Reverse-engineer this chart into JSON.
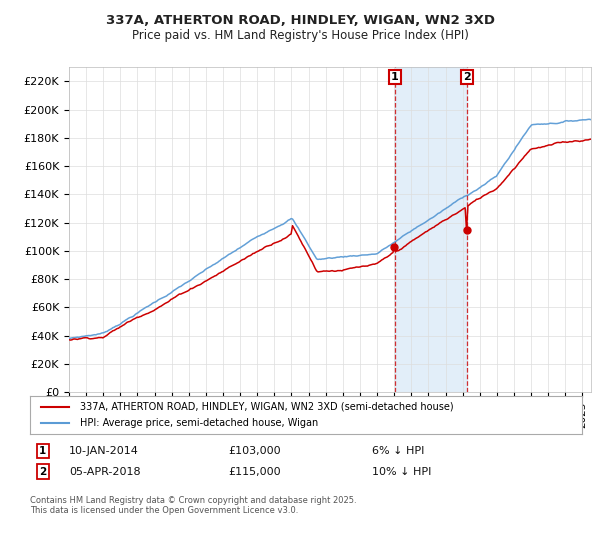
{
  "title_line1": "337A, ATHERTON ROAD, HINDLEY, WIGAN, WN2 3XD",
  "title_line2": "Price paid vs. HM Land Registry's House Price Index (HPI)",
  "xlim_start": 1995.0,
  "xlim_end": 2025.5,
  "ylim_min": 0,
  "ylim_max": 230000,
  "yticks": [
    0,
    20000,
    40000,
    60000,
    80000,
    100000,
    120000,
    140000,
    160000,
    180000,
    200000,
    220000
  ],
  "ytick_labels": [
    "£0",
    "£20K",
    "£40K",
    "£60K",
    "£80K",
    "£100K",
    "£120K",
    "£140K",
    "£160K",
    "£180K",
    "£200K",
    "£220K"
  ],
  "hpi_color": "#5b9bd5",
  "price_color": "#cc0000",
  "marker1_year": 2014.04,
  "marker2_year": 2018.26,
  "sale1_price_val": 103000,
  "sale2_price_val": 115000,
  "sale1_date": "10-JAN-2014",
  "sale1_price": "£103,000",
  "sale1_note": "6% ↓ HPI",
  "sale2_date": "05-APR-2018",
  "sale2_price": "£115,000",
  "sale2_note": "10% ↓ HPI",
  "legend_label1": "337A, ATHERTON ROAD, HINDLEY, WIGAN, WN2 3XD (semi-detached house)",
  "legend_label2": "HPI: Average price, semi-detached house, Wigan",
  "footnote": "Contains HM Land Registry data © Crown copyright and database right 2025.\nThis data is licensed under the Open Government Licence v3.0.",
  "background_color": "#ffffff",
  "grid_color": "#dddddd",
  "shade_color": "#d6e8f7"
}
